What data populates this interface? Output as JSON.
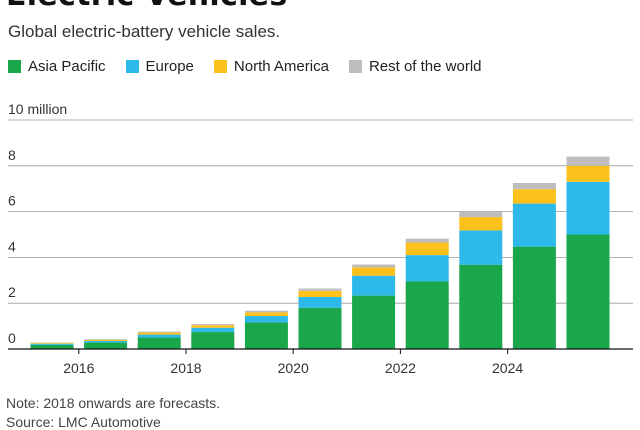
{
  "header": {
    "title": "Electric Vehicles",
    "subtitle": "Global electric-battery vehicle sales."
  },
  "legend": [
    {
      "label": "Asia Pacific",
      "color": "#1aa64a"
    },
    {
      "label": "Europe",
      "color": "#2db9ea"
    },
    {
      "label": "North America",
      "color": "#fcc21b"
    },
    {
      "label": "Rest of the world",
      "color": "#bdbdbd"
    }
  ],
  "chart_data": {
    "type": "bar",
    "stacked": true,
    "categories": [
      "2015",
      "2016",
      "2017",
      "2018",
      "2019",
      "2020",
      "2021",
      "2022",
      "2023",
      "2024",
      "2025"
    ],
    "series": [
      {
        "name": "Asia Pacific",
        "color": "#1aa64a",
        "values": [
          0.18,
          0.28,
          0.5,
          0.74,
          1.16,
          1.8,
          2.33,
          2.95,
          3.68,
          4.47,
          5.0
        ]
      },
      {
        "name": "Europe",
        "color": "#2db9ea",
        "values": [
          0.05,
          0.07,
          0.13,
          0.19,
          0.28,
          0.47,
          0.87,
          1.15,
          1.5,
          1.88,
          2.3
        ]
      },
      {
        "name": "North America",
        "color": "#fcc21b",
        "values": [
          0.03,
          0.05,
          0.09,
          0.11,
          0.16,
          0.27,
          0.36,
          0.55,
          0.58,
          0.63,
          0.7
        ]
      },
      {
        "name": "Rest of the world",
        "color": "#bdbdbd",
        "values": [
          0.02,
          0.03,
          0.04,
          0.05,
          0.07,
          0.1,
          0.13,
          0.17,
          0.22,
          0.27,
          0.4
        ]
      }
    ],
    "yticks": [
      0,
      2,
      4,
      6,
      8,
      10
    ],
    "ytick_labels": [
      "0",
      "2",
      "4",
      "6",
      "8",
      "10 million"
    ],
    "xtick_labels": [
      {
        "year": "2016",
        "label": "2016"
      },
      {
        "year": "2018",
        "label": "2018"
      },
      {
        "year": "2020",
        "label": "2020"
      },
      {
        "year": "2022",
        "label": "2022"
      },
      {
        "year": "2024",
        "label": "2024"
      }
    ],
    "ylim": [
      0,
      10
    ],
    "grid": true,
    "legend_position": "top"
  },
  "footer": {
    "note": "Note: 2018 onwards are forecasts.",
    "source": "Source: LMC Automotive"
  }
}
